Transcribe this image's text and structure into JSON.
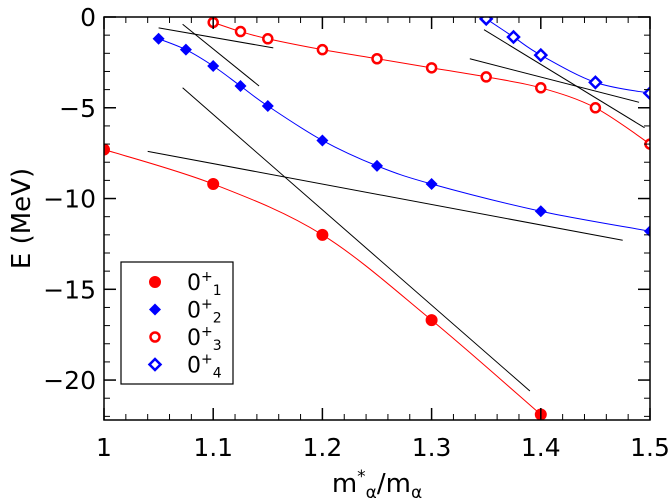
{
  "chart_data": {
    "type": "scatter",
    "title": "",
    "xlabel": {
      "main": "m",
      "sup": "*",
      "sub1": "α",
      "slash": "/m",
      "sub2": "α"
    },
    "ylabel": "E (MeV)",
    "xlim": [
      1.0,
      1.5
    ],
    "ylim": [
      -22.2,
      0
    ],
    "xticks": [
      1.0,
      1.1,
      1.2,
      1.3,
      1.4,
      1.5
    ],
    "xtick_labels": [
      "1",
      "1.1",
      "1.2",
      "1.3",
      "1.4",
      "1.5"
    ],
    "yticks": [
      0,
      -5,
      -10,
      -15,
      -20
    ],
    "ytick_labels": [
      "0",
      "−5",
      "−10",
      "−15",
      "−20"
    ],
    "legend_position": "bottom-left",
    "series": [
      {
        "name": "0+1",
        "label_main": "0",
        "label_sup": "+",
        "label_sub": "1",
        "color": "#ff0000",
        "marker": "filled-circle",
        "x": [
          1.0,
          1.1,
          1.2,
          1.3,
          1.4
        ],
        "y": [
          -7.3,
          -9.2,
          -12.0,
          -16.7,
          -21.9
        ]
      },
      {
        "name": "0+2",
        "label_main": "0",
        "label_sup": "+",
        "label_sub": "2",
        "color": "#0000ff",
        "marker": "filled-diamond",
        "x": [
          1.05,
          1.075,
          1.1,
          1.125,
          1.15,
          1.2,
          1.25,
          1.3,
          1.4,
          1.5
        ],
        "y": [
          -1.2,
          -1.8,
          -2.7,
          -3.8,
          -4.9,
          -6.8,
          -8.2,
          -9.2,
          -10.7,
          -11.8
        ]
      },
      {
        "name": "0+3",
        "label_main": "0",
        "label_sup": "+",
        "label_sub": "3",
        "color": "#ff0000",
        "marker": "open-circle",
        "x": [
          1.1,
          1.125,
          1.15,
          1.2,
          1.25,
          1.3,
          1.35,
          1.4,
          1.45,
          1.5
        ],
        "y": [
          -0.3,
          -0.8,
          -1.2,
          -1.8,
          -2.3,
          -2.8,
          -3.3,
          -3.9,
          -5.0,
          -7.0
        ]
      },
      {
        "name": "0+4",
        "label_main": "0",
        "label_sup": "+",
        "label_sub": "4",
        "color": "#0000ff",
        "marker": "open-diamond",
        "x": [
          1.35,
          1.375,
          1.4,
          1.45,
          1.5
        ],
        "y": [
          -0.1,
          -1.1,
          -2.1,
          -3.6,
          -4.2
        ]
      }
    ],
    "reference_lines": [
      {
        "x": [
          1.05,
          1.155
        ],
        "y": [
          -0.6,
          -1.7
        ]
      },
      {
        "x": [
          1.072,
          1.142
        ],
        "y": [
          -0.4,
          -3.8
        ]
      },
      {
        "x": [
          1.04,
          1.475
        ],
        "y": [
          -7.4,
          -12.3
        ]
      },
      {
        "x": [
          1.072,
          1.39
        ],
        "y": [
          -3.9,
          -20.6
        ]
      },
      {
        "x": [
          1.335,
          1.49
        ],
        "y": [
          -2.3,
          -4.7
        ]
      },
      {
        "x": [
          1.348,
          1.495
        ],
        "y": [
          -0.7,
          -6.1
        ]
      }
    ],
    "colors": {
      "axis": "#000000",
      "reference": "#000000"
    }
  }
}
